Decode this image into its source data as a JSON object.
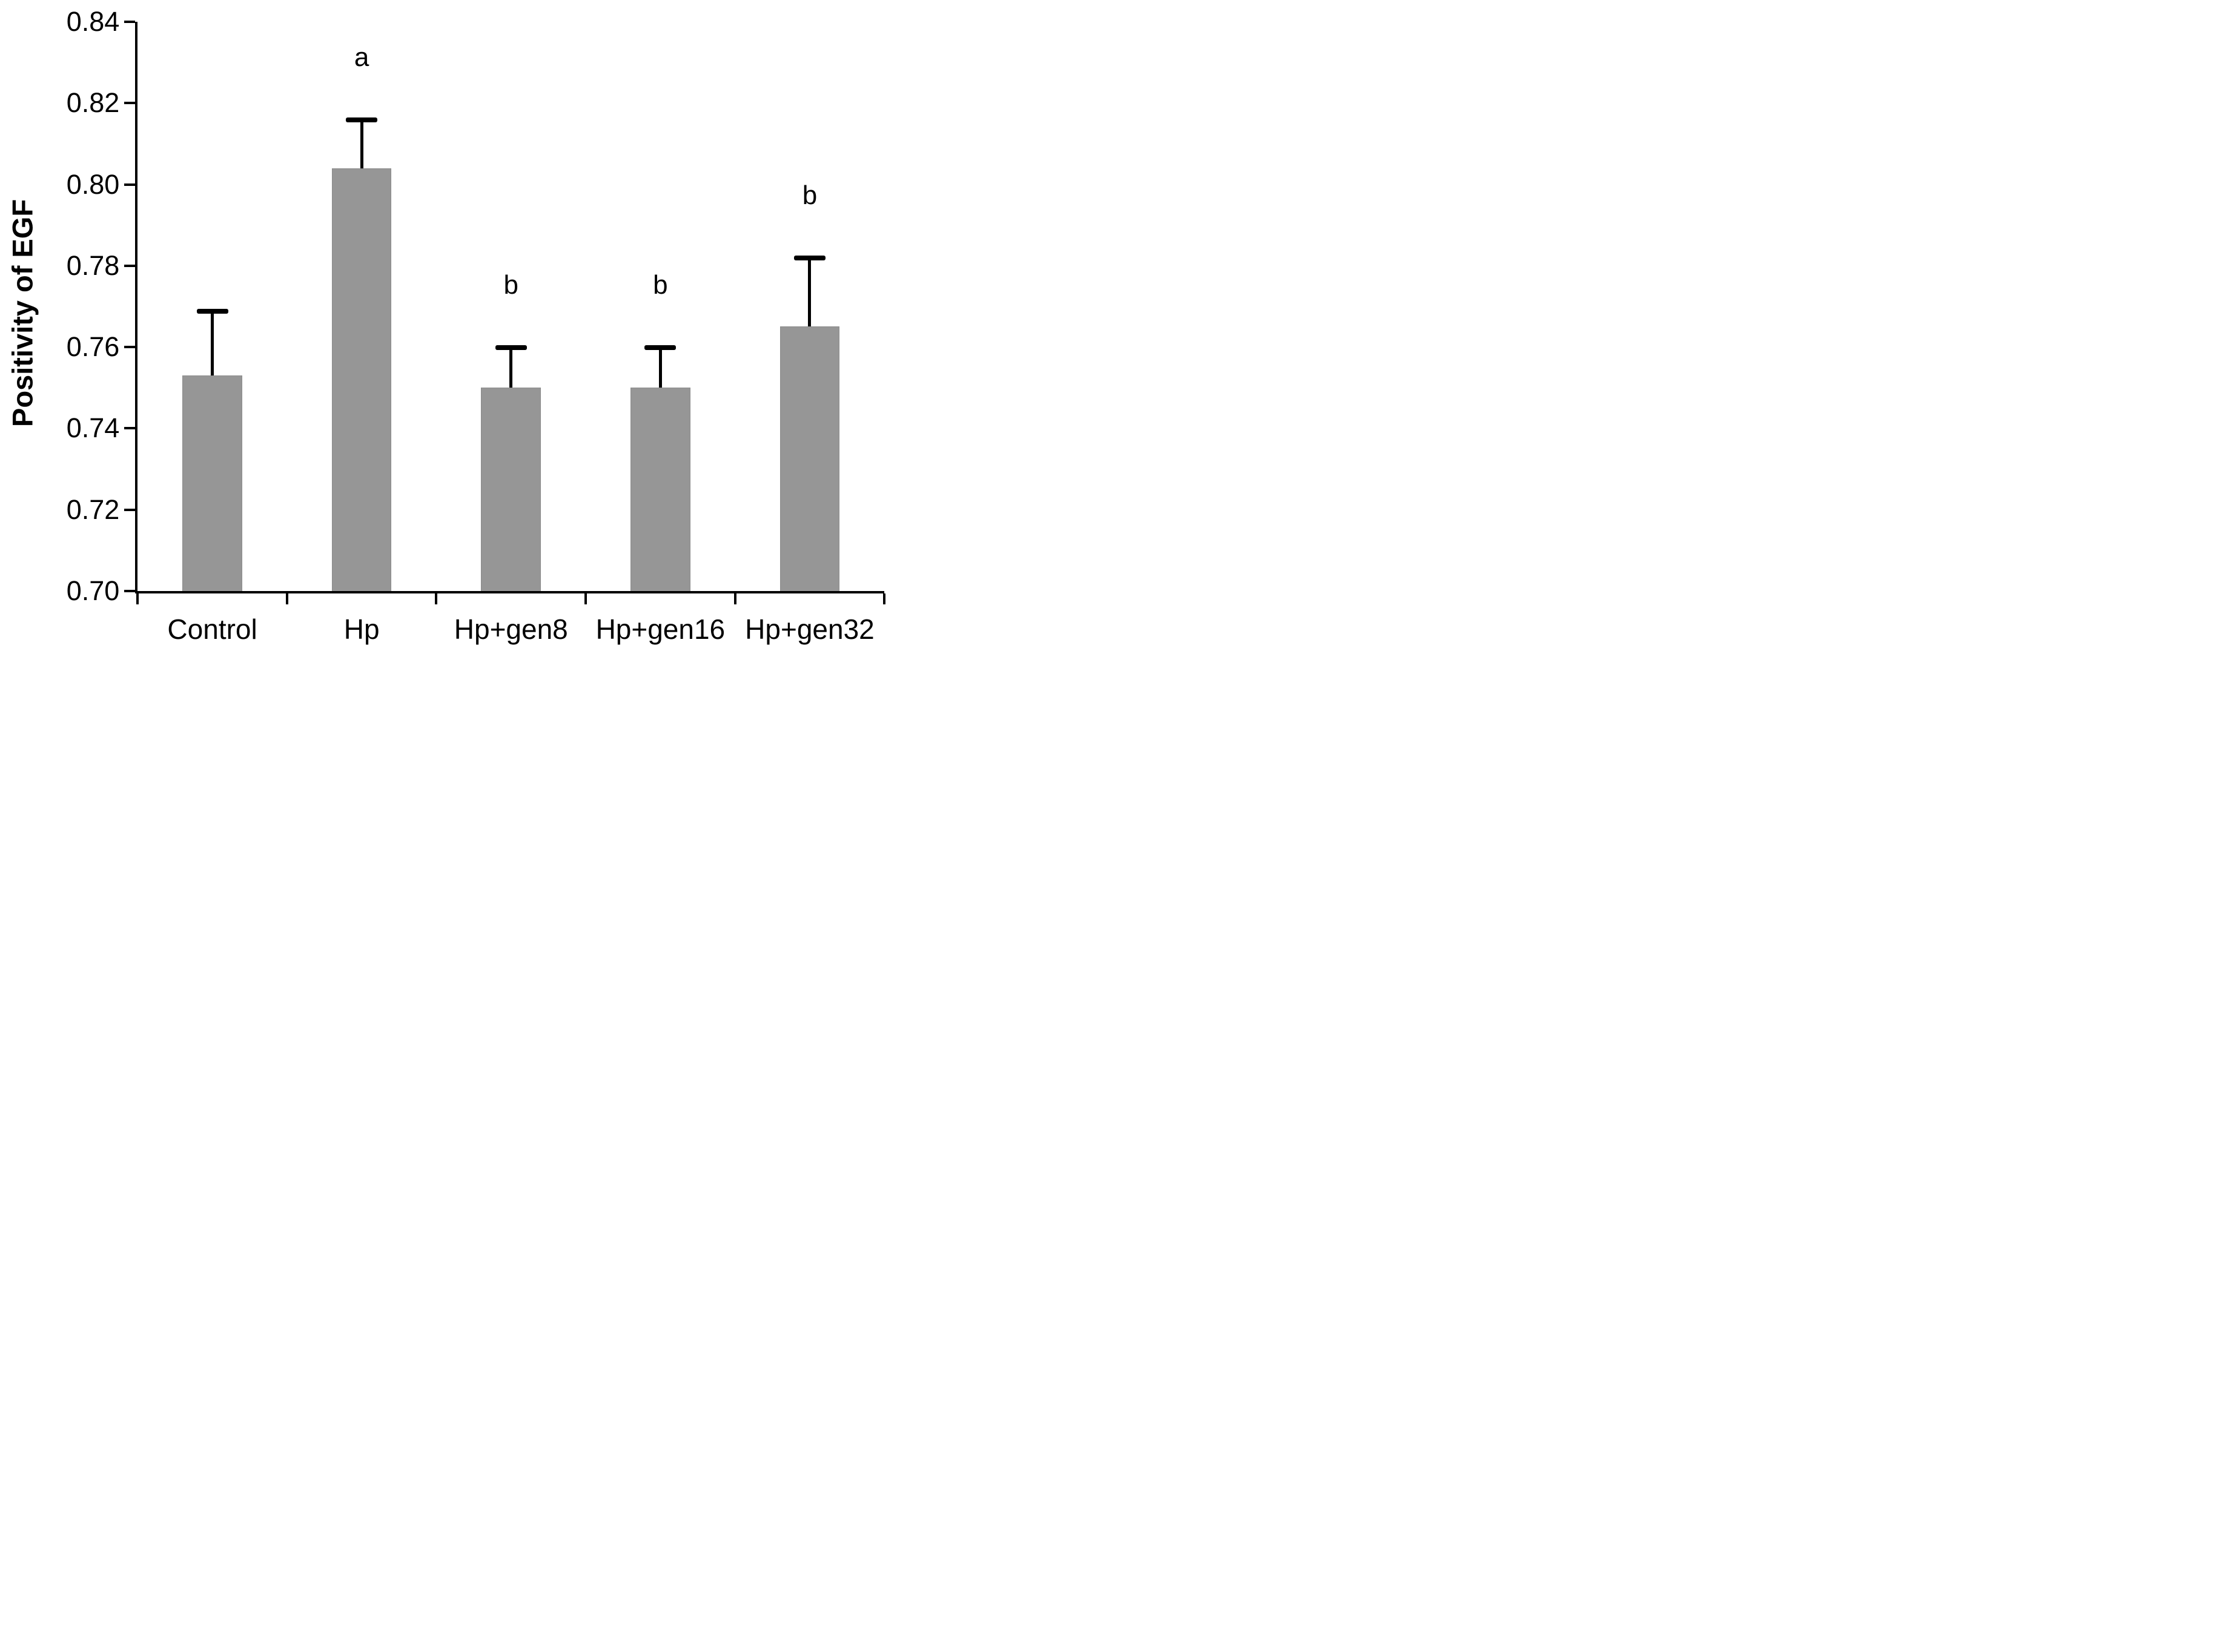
{
  "figure": {
    "background": "#ffffff"
  },
  "chart_data": {
    "type": "bar",
    "title": "",
    "ylabel": "Positivity of EGF",
    "xlabel": "",
    "categories": [
      "Control",
      "Hp",
      "Hp+gen8",
      "Hp+gen16",
      "Hp+gen32"
    ],
    "values": [
      0.753,
      0.804,
      0.75,
      0.75,
      0.765
    ],
    "error_plus": [
      0.016,
      0.012,
      0.01,
      0.01,
      0.017
    ],
    "sig_letters": [
      "",
      "a",
      "b",
      "b",
      "b"
    ],
    "ylim": [
      0.7,
      0.84
    ],
    "ytick_step": 0.02,
    "ytick_labels": [
      "0.84",
      "0.82",
      "0.80",
      "0.78",
      "0.76",
      "0.74",
      "0.72",
      "0.70"
    ],
    "grid": false,
    "legend": "none",
    "bar_color": "#969696",
    "bar_edge_color": "#8b8b8b",
    "axis_color": "#000000",
    "text_color": "#000000"
  }
}
